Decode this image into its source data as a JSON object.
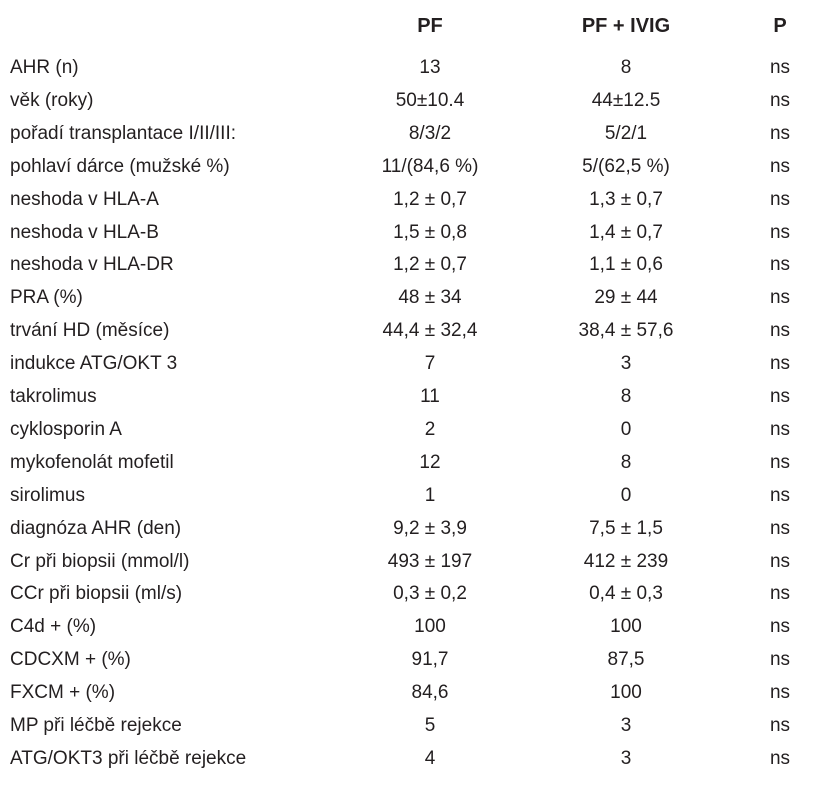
{
  "header": {
    "label": "",
    "pf": "PF",
    "pf_ivig": "PF + IVIG",
    "p": "P"
  },
  "rows": [
    {
      "label": "AHR (n)",
      "pf": "13",
      "pf_ivig": "8",
      "p": "ns"
    },
    {
      "label": "věk (roky)",
      "pf": "50±10.4",
      "pf_ivig": "44±12.5",
      "p": "ns"
    },
    {
      "label": "pořadí transplantace I/II/III:",
      "pf": "8/3/2",
      "pf_ivig": "5/2/1",
      "p": "ns"
    },
    {
      "label": "pohlaví dárce (mužské %)",
      "pf": "11/(84,6 %)",
      "pf_ivig": "5/(62,5 %)",
      "p": "ns"
    },
    {
      "label": "neshoda v HLA-A",
      "pf": "1,2 ± 0,7",
      "pf_ivig": "1,3 ± 0,7",
      "p": "ns"
    },
    {
      "label": "neshoda v HLA-B",
      "pf": "1,5 ± 0,8",
      "pf_ivig": "1,4 ± 0,7",
      "p": "ns"
    },
    {
      "label": "neshoda v HLA-DR",
      "pf": "1,2 ± 0,7",
      "pf_ivig": "1,1 ± 0,6",
      "p": "ns"
    },
    {
      "label": "PRA (%)",
      "pf": "48 ± 34",
      "pf_ivig": "29 ± 44",
      "p": "ns"
    },
    {
      "label": "trvání HD (měsíce)",
      "pf": "44,4 ± 32,4",
      "pf_ivig": "38,4 ± 57,6",
      "p": "ns"
    },
    {
      "label": "indukce ATG/OKT 3",
      "pf": "7",
      "pf_ivig": "3",
      "p": "ns"
    },
    {
      "label": "takrolimus",
      "pf": "11",
      "pf_ivig": "8",
      "p": "ns"
    },
    {
      "label": "cyklosporin A",
      "pf": "2",
      "pf_ivig": "0",
      "p": "ns"
    },
    {
      "label": "mykofenolát mofetil",
      "pf": "12",
      "pf_ivig": "8",
      "p": "ns"
    },
    {
      "label": "sirolimus",
      "pf": "1",
      "pf_ivig": "0",
      "p": "ns"
    },
    {
      "label": "diagnóza AHR (den)",
      "pf": "9,2 ± 3,9",
      "pf_ivig": "7,5 ± 1,5",
      "p": "ns"
    },
    {
      "label": "Cr při biopsii (mmol/l)",
      "pf": "493 ± 197",
      "pf_ivig": "412 ± 239",
      "p": "ns"
    },
    {
      "label": "CCr při biopsii (ml/s)",
      "pf": "0,3 ± 0,2",
      "pf_ivig": "0,4 ± 0,3",
      "p": "ns"
    },
    {
      "label": "C4d + (%)",
      "pf": "100",
      "pf_ivig": "100",
      "p": "ns"
    },
    {
      "label": "CDCXM + (%)",
      "pf": "91,7",
      "pf_ivig": "87,5",
      "p": "ns"
    },
    {
      "label": "FXCM + (%)",
      "pf": "84,6",
      "pf_ivig": "100",
      "p": "ns"
    },
    {
      "label": "MP při léčbě rejekce",
      "pf": "5",
      "pf_ivig": "3",
      "p": "ns"
    },
    {
      "label": "ATG/OKT3 při léčbě rejekce",
      "pf": "4",
      "pf_ivig": "3",
      "p": "ns"
    }
  ]
}
